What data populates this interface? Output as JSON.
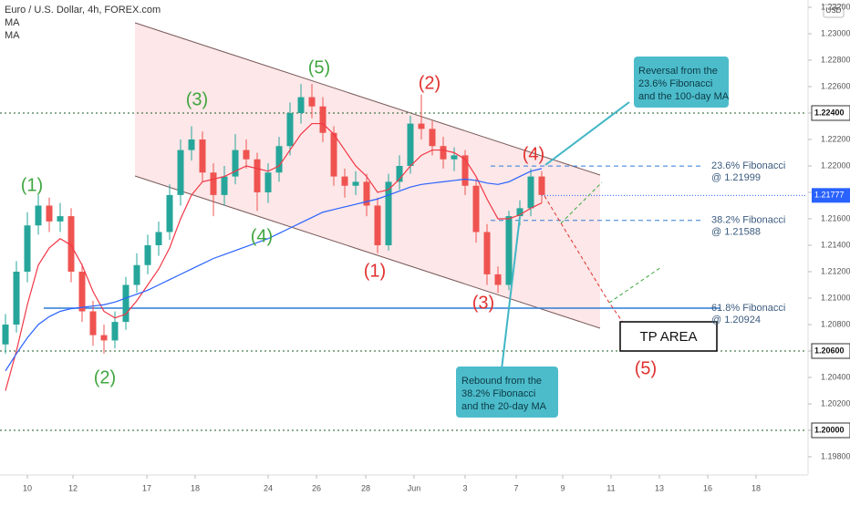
{
  "chart_data": {
    "type": "candlestick",
    "title": "Euro / U.S. Dollar, 4h, FOREX.com",
    "currency": "USD",
    "up_color": "#26a69a",
    "down_color": "#ef5350",
    "x": [
      0,
      1,
      2,
      3,
      4,
      5,
      6,
      7,
      8,
      9,
      10,
      11,
      12,
      13,
      14,
      15,
      16,
      17,
      18,
      19,
      20,
      21,
      22,
      23,
      24,
      25,
      26,
      27,
      28,
      29,
      30,
      31,
      32,
      33,
      34,
      35,
      36,
      37,
      38,
      39,
      40,
      41,
      42,
      43,
      44,
      45,
      46,
      47,
      48,
      49
    ],
    "open": [
      1.2065,
      1.208,
      1.212,
      1.2155,
      1.217,
      1.2158,
      1.2162,
      1.212,
      1.209,
      1.2072,
      1.2068,
      1.2082,
      1.211,
      1.2125,
      1.214,
      1.215,
      1.2178,
      1.2212,
      1.222,
      1.2195,
      1.2178,
      1.2192,
      1.2212,
      1.2205,
      1.218,
      1.2195,
      1.2215,
      1.224,
      1.2252,
      1.2245,
      1.2225,
      1.2192,
      1.2185,
      1.2188,
      1.217,
      1.214,
      1.2188,
      1.22,
      1.2232,
      1.2228,
      1.2215,
      1.2205,
      1.2208,
      1.2185,
      1.215,
      1.2118,
      1.211,
      1.2162,
      1.2168,
      1.2192
    ],
    "high": [
      1.2088,
      1.2128,
      1.2165,
      1.2178,
      1.2176,
      1.2172,
      1.2168,
      1.2126,
      1.2098,
      1.208,
      1.209,
      1.2116,
      1.2134,
      1.2148,
      1.2158,
      1.2186,
      1.222,
      1.223,
      1.2226,
      1.2202,
      1.22,
      1.2224,
      1.222,
      1.221,
      1.2202,
      1.2222,
      1.2248,
      1.2262,
      1.2262,
      1.2252,
      1.223,
      1.2198,
      1.2196,
      1.2194,
      1.2176,
      1.2194,
      1.2208,
      1.2238,
      1.2254,
      1.2234,
      1.2222,
      1.2214,
      1.2212,
      1.219,
      1.2156,
      1.2124,
      1.2166,
      1.2174,
      1.2198,
      1.2196
    ],
    "low": [
      1.2058,
      1.2074,
      1.2112,
      1.2148,
      1.215,
      1.215,
      1.2112,
      1.2082,
      1.2064,
      1.2058,
      1.2062,
      1.2076,
      1.2104,
      1.2118,
      1.2132,
      1.2144,
      1.217,
      1.2204,
      1.2188,
      1.2162,
      1.217,
      1.2186,
      1.2198,
      1.2166,
      1.2172,
      1.2188,
      1.2208,
      1.2232,
      1.2236,
      1.2218,
      1.2185,
      1.2176,
      1.2178,
      1.2162,
      1.2134,
      1.2136,
      1.2182,
      1.2194,
      1.222,
      1.2208,
      1.2198,
      1.2196,
      1.2178,
      1.2142,
      1.211,
      1.2104,
      1.2106,
      1.2155,
      1.2162,
      1.2172
    ],
    "close": [
      1.208,
      1.212,
      1.2155,
      1.217,
      1.2158,
      1.2162,
      1.212,
      1.209,
      1.2072,
      1.2068,
      1.2082,
      1.211,
      1.2125,
      1.214,
      1.215,
      1.2178,
      1.2212,
      1.222,
      1.2195,
      1.2178,
      1.2192,
      1.2212,
      1.2205,
      1.218,
      1.2195,
      1.2215,
      1.224,
      1.2252,
      1.2245,
      1.2225,
      1.2192,
      1.2185,
      1.2188,
      1.217,
      1.214,
      1.2188,
      1.22,
      1.2232,
      1.2228,
      1.2215,
      1.2205,
      1.2208,
      1.2185,
      1.215,
      1.2118,
      1.211,
      1.2162,
      1.2168,
      1.2192,
      1.2178
    ],
    "lines": [
      {
        "name": "MA",
        "color": "#f23645",
        "values": [
          1.203,
          1.206,
          1.2095,
          1.2125,
          1.2138,
          1.2145,
          1.214,
          1.2125,
          1.2105,
          1.209,
          1.2085,
          1.2088,
          1.2098,
          1.211,
          1.2122,
          1.2138,
          1.216,
          1.2178,
          1.2188,
          1.219,
          1.2192,
          1.2196,
          1.22,
          1.2198,
          1.2196,
          1.22,
          1.2212,
          1.2224,
          1.2232,
          1.2232,
          1.2224,
          1.2212,
          1.22,
          1.2192,
          1.218,
          1.2182,
          1.219,
          1.22,
          1.2208,
          1.2212,
          1.2212,
          1.221,
          1.2205,
          1.2192,
          1.2175,
          1.216,
          1.216,
          1.2163,
          1.2168,
          1.2172
        ]
      },
      {
        "name": "MA",
        "color": "#2962ff",
        "values": [
          1.2045,
          1.2058,
          1.207,
          1.208,
          1.2086,
          1.209,
          1.2092,
          1.2093,
          1.2094,
          1.2095,
          1.2097,
          1.21,
          1.2103,
          1.2106,
          1.211,
          1.2114,
          1.2118,
          1.2122,
          1.2126,
          1.213,
          1.2133,
          1.2136,
          1.2139,
          1.2142,
          1.2145,
          1.2149,
          1.2153,
          1.2157,
          1.2161,
          1.2165,
          1.2167,
          1.2169,
          1.2171,
          1.2173,
          1.2175,
          1.2178,
          1.2181,
          1.2184,
          1.2186,
          1.2187,
          1.2188,
          1.2189,
          1.219,
          1.2189,
          1.2187,
          1.2186,
          1.2188,
          1.2192,
          1.2196,
          1.2198
        ]
      }
    ],
    "xlim": [
      -0.5,
      73.25
    ],
    "ylim": [
      1.19669,
      1.23255
    ],
    "xticks": [
      {
        "value": 2,
        "label": "10"
      },
      {
        "value": 6.17,
        "label": "12"
      },
      {
        "value": 12.92,
        "label": "17"
      },
      {
        "value": 17.33,
        "label": "18"
      },
      {
        "value": 24,
        "label": "24"
      },
      {
        "value": 28.42,
        "label": "26"
      },
      {
        "value": 32.92,
        "label": "28"
      },
      {
        "value": 37.33,
        "label": "Jun"
      },
      {
        "value": 42,
        "label": "3"
      },
      {
        "value": 46.67,
        "label": "7"
      },
      {
        "value": 50.92,
        "label": "9"
      },
      {
        "value": 55.33,
        "label": "11"
      },
      {
        "value": 59.75,
        "label": "13"
      },
      {
        "value": 64.17,
        "label": "16"
      },
      {
        "value": 68.58,
        "label": "18"
      }
    ],
    "yticks": [
      {
        "value": 1.198,
        "label": "1.19800"
      },
      {
        "value": 1.2,
        "label": "1.20000"
      },
      {
        "value": 1.202,
        "label": "1.20200"
      },
      {
        "value": 1.204,
        "label": "1.20400"
      },
      {
        "value": 1.206,
        "label": "1.20600"
      },
      {
        "value": 1.208,
        "label": "1.20800"
      },
      {
        "value": 1.21,
        "label": "1.21000"
      },
      {
        "value": 1.212,
        "label": "1.21200"
      },
      {
        "value": 1.214,
        "label": "1.21400"
      },
      {
        "value": 1.216,
        "label": "1.21600"
      },
      {
        "value": 1.218,
        "label": "1.21800"
      },
      {
        "value": 1.22,
        "label": "1.22000"
      },
      {
        "value": 1.222,
        "label": "1.22200"
      },
      {
        "value": 1.224,
        "label": "1.22400"
      },
      {
        "value": 1.226,
        "label": "1.22600"
      },
      {
        "value": 1.228,
        "label": "1.22800"
      },
      {
        "value": 1.23,
        "label": "1.23000"
      },
      {
        "value": 1.232,
        "label": "1.23200"
      }
    ],
    "grid": false,
    "levels": [
      {
        "value": 1.224,
        "label": "1.22400"
      },
      {
        "value": 1.206,
        "label": "1.20600"
      },
      {
        "value": 1.2,
        "label": "1.20000"
      }
    ],
    "level_color": "#1b5e20",
    "last_price": {
      "value": 1.21777,
      "label": "1.21777"
    },
    "last_color": "#2962ff",
    "fib": [
      {
        "value": 1.21999,
        "name": "23.6% Fibonacci",
        "label": "@ 1.21999"
      },
      {
        "value": 1.21588,
        "name": "38.2% Fibonacci",
        "label": "@ 1.21588"
      },
      {
        "value": 1.20924,
        "name": "61.8% Fibonacci",
        "label": "@ 1.20924"
      }
    ],
    "fib_color": "#2e7bd6",
    "annotations": {
      "waves": [
        "(1)",
        "(2)",
        "(3)",
        "(4)",
        "(5)",
        "(1)",
        "(2)",
        "(3)",
        "(4)",
        "(5)"
      ],
      "callouts": [
        [
          "Reversal from the",
          "23.6% Fibonacci",
          "and the 100-day MA"
        ],
        [
          "Rebound from the",
          "38.2% Fibonacci",
          "and the 20-day MA"
        ]
      ],
      "tp": "TP AREA"
    }
  }
}
